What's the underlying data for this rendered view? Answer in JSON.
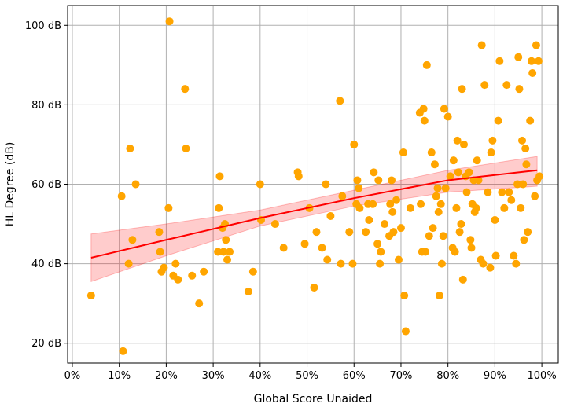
{
  "chart_data": {
    "type": "scatter",
    "title": "",
    "xlabel": "Global Score Unaided",
    "ylabel": "HL Degree (dB)",
    "xlim": [
      -0.01,
      1.035
    ],
    "ylim": [
      15,
      105
    ],
    "grid": true,
    "x_ticks": [
      0,
      0.1,
      0.2,
      0.3,
      0.4,
      0.5,
      0.6,
      0.7,
      0.8,
      0.9,
      1.0
    ],
    "x_tick_labels": [
      "0%",
      "10%",
      "20%",
      "30%",
      "40%",
      "50%",
      "60%",
      "70%",
      "80%",
      "90%",
      "100%"
    ],
    "y_ticks": [
      20,
      40,
      60,
      80,
      100
    ],
    "y_tick_labels": [
      "20 dB",
      "40 dB",
      "60 dB",
      "80 dB",
      "100 dB"
    ],
    "colors": {
      "points": "#FFA500",
      "regression": "#FF0000",
      "band": "#FF0000"
    },
    "regression": {
      "x": [
        0.04,
        0.2,
        0.4,
        0.6,
        0.8,
        0.99
      ],
      "y": [
        41.5,
        46.0,
        51.5,
        56.5,
        61.0,
        63.5
      ],
      "ci_lower": [
        35.5,
        42.0,
        49.5,
        54.5,
        58.0,
        59.5
      ],
      "ci_upper": [
        47.5,
        50.0,
        53.5,
        58.5,
        63.5,
        67.0
      ]
    },
    "series": [
      {
        "name": "observations",
        "points": [
          [
            0.04,
            32
          ],
          [
            0.105,
            57
          ],
          [
            0.108,
            18
          ],
          [
            0.12,
            40
          ],
          [
            0.123,
            69
          ],
          [
            0.128,
            46
          ],
          [
            0.135,
            60
          ],
          [
            0.185,
            48
          ],
          [
            0.187,
            43
          ],
          [
            0.19,
            38
          ],
          [
            0.195,
            39
          ],
          [
            0.205,
            54
          ],
          [
            0.207,
            101
          ],
          [
            0.215,
            37
          ],
          [
            0.22,
            40
          ],
          [
            0.225,
            36
          ],
          [
            0.24,
            84
          ],
          [
            0.242,
            69
          ],
          [
            0.255,
            37
          ],
          [
            0.27,
            30
          ],
          [
            0.28,
            38
          ],
          [
            0.31,
            43
          ],
          [
            0.312,
            54
          ],
          [
            0.314,
            62
          ],
          [
            0.32,
            49
          ],
          [
            0.322,
            43
          ],
          [
            0.325,
            50
          ],
          [
            0.327,
            46
          ],
          [
            0.33,
            41
          ],
          [
            0.335,
            43
          ],
          [
            0.375,
            33
          ],
          [
            0.385,
            38
          ],
          [
            0.4,
            60
          ],
          [
            0.402,
            51
          ],
          [
            0.432,
            50
          ],
          [
            0.45,
            44
          ],
          [
            0.48,
            63
          ],
          [
            0.482,
            62
          ],
          [
            0.495,
            45
          ],
          [
            0.505,
            54
          ],
          [
            0.515,
            34
          ],
          [
            0.52,
            48
          ],
          [
            0.532,
            44
          ],
          [
            0.54,
            60
          ],
          [
            0.543,
            41
          ],
          [
            0.55,
            52
          ],
          [
            0.57,
            81
          ],
          [
            0.572,
            40
          ],
          [
            0.575,
            57
          ],
          [
            0.59,
            48
          ],
          [
            0.597,
            40
          ],
          [
            0.6,
            70
          ],
          [
            0.605,
            55
          ],
          [
            0.607,
            61
          ],
          [
            0.61,
            59
          ],
          [
            0.612,
            54
          ],
          [
            0.625,
            48
          ],
          [
            0.63,
            55
          ],
          [
            0.632,
            51
          ],
          [
            0.64,
            55
          ],
          [
            0.642,
            63
          ],
          [
            0.65,
            45
          ],
          [
            0.652,
            61
          ],
          [
            0.655,
            40
          ],
          [
            0.657,
            43
          ],
          [
            0.665,
            50
          ],
          [
            0.675,
            47
          ],
          [
            0.677,
            55
          ],
          [
            0.68,
            61
          ],
          [
            0.682,
            53
          ],
          [
            0.684,
            48
          ],
          [
            0.69,
            56
          ],
          [
            0.695,
            41
          ],
          [
            0.7,
            49
          ],
          [
            0.705,
            68
          ],
          [
            0.707,
            32
          ],
          [
            0.71,
            23
          ],
          [
            0.72,
            54
          ],
          [
            0.74,
            78
          ],
          [
            0.742,
            55
          ],
          [
            0.745,
            43
          ],
          [
            0.748,
            79
          ],
          [
            0.75,
            76
          ],
          [
            0.752,
            43
          ],
          [
            0.755,
            90
          ],
          [
            0.76,
            47
          ],
          [
            0.765,
            68
          ],
          [
            0.768,
            49
          ],
          [
            0.772,
            65
          ],
          [
            0.775,
            57
          ],
          [
            0.778,
            59
          ],
          [
            0.78,
            53
          ],
          [
            0.782,
            32
          ],
          [
            0.785,
            55
          ],
          [
            0.787,
            40
          ],
          [
            0.79,
            47
          ],
          [
            0.792,
            79
          ],
          [
            0.795,
            59
          ],
          [
            0.8,
            77
          ],
          [
            0.805,
            62
          ],
          [
            0.81,
            44
          ],
          [
            0.812,
            66
          ],
          [
            0.815,
            43
          ],
          [
            0.818,
            54
          ],
          [
            0.82,
            71
          ],
          [
            0.822,
            63
          ],
          [
            0.825,
            48
          ],
          [
            0.828,
            50
          ],
          [
            0.83,
            84
          ],
          [
            0.832,
            36
          ],
          [
            0.834,
            70
          ],
          [
            0.838,
            62
          ],
          [
            0.84,
            58
          ],
          [
            0.845,
            63
          ],
          [
            0.848,
            46
          ],
          [
            0.85,
            44
          ],
          [
            0.852,
            55
          ],
          [
            0.855,
            61
          ],
          [
            0.857,
            53
          ],
          [
            0.86,
            54
          ],
          [
            0.862,
            66
          ],
          [
            0.865,
            61
          ],
          [
            0.87,
            41
          ],
          [
            0.872,
            95
          ],
          [
            0.875,
            40
          ],
          [
            0.878,
            85
          ],
          [
            0.885,
            58
          ],
          [
            0.89,
            39
          ],
          [
            0.892,
            68
          ],
          [
            0.895,
            71
          ],
          [
            0.9,
            51
          ],
          [
            0.902,
            42
          ],
          [
            0.907,
            76
          ],
          [
            0.91,
            91
          ],
          [
            0.915,
            58
          ],
          [
            0.92,
            54
          ],
          [
            0.925,
            85
          ],
          [
            0.93,
            58
          ],
          [
            0.935,
            56
          ],
          [
            0.94,
            42
          ],
          [
            0.945,
            40
          ],
          [
            0.948,
            60
          ],
          [
            0.95,
            92
          ],
          [
            0.952,
            84
          ],
          [
            0.955,
            54
          ],
          [
            0.958,
            71
          ],
          [
            0.96,
            60
          ],
          [
            0.962,
            46
          ],
          [
            0.965,
            69
          ],
          [
            0.967,
            65
          ],
          [
            0.97,
            48
          ],
          [
            0.975,
            76
          ],
          [
            0.978,
            91
          ],
          [
            0.98,
            88
          ],
          [
            0.985,
            57
          ],
          [
            0.988,
            95
          ],
          [
            0.99,
            61
          ],
          [
            0.993,
            91
          ],
          [
            0.995,
            62
          ]
        ]
      }
    ]
  }
}
